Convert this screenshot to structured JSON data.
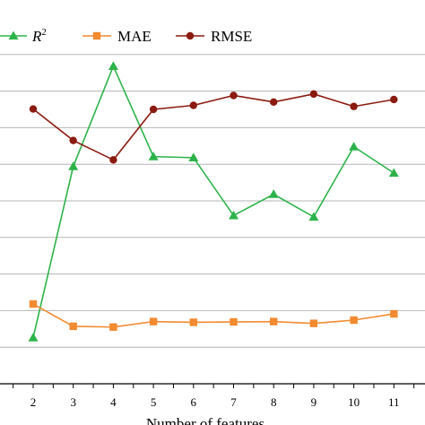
{
  "chart_data": {
    "type": "line",
    "title": "",
    "xlabel": "Number of features",
    "ylabel": "",
    "x": [
      2,
      3,
      4,
      5,
      6,
      7,
      8,
      9,
      10,
      11
    ],
    "xlim": [
      1.25,
      11.35
    ],
    "ylim": [
      0,
      10
    ],
    "grid": "horizontal",
    "legend_position": "top-left",
    "series": [
      {
        "name": "R",
        "name_superscript": "2",
        "color": "#2db34a",
        "marker": "triangle",
        "values": [
          1.26,
          5.94,
          8.68,
          6.21,
          6.18,
          4.6,
          5.18,
          4.56,
          6.48,
          5.76
        ]
      },
      {
        "name": "MAE",
        "color": "#f28a30",
        "marker": "square",
        "values": [
          2.18,
          1.57,
          1.55,
          1.7,
          1.68,
          1.69,
          1.7,
          1.65,
          1.74,
          1.91
        ]
      },
      {
        "name": "RMSE",
        "color": "#8b1a10",
        "marker": "circle",
        "values": [
          7.51,
          6.65,
          6.12,
          7.5,
          7.61,
          7.88,
          7.7,
          7.92,
          7.58,
          7.77
        ]
      }
    ]
  }
}
